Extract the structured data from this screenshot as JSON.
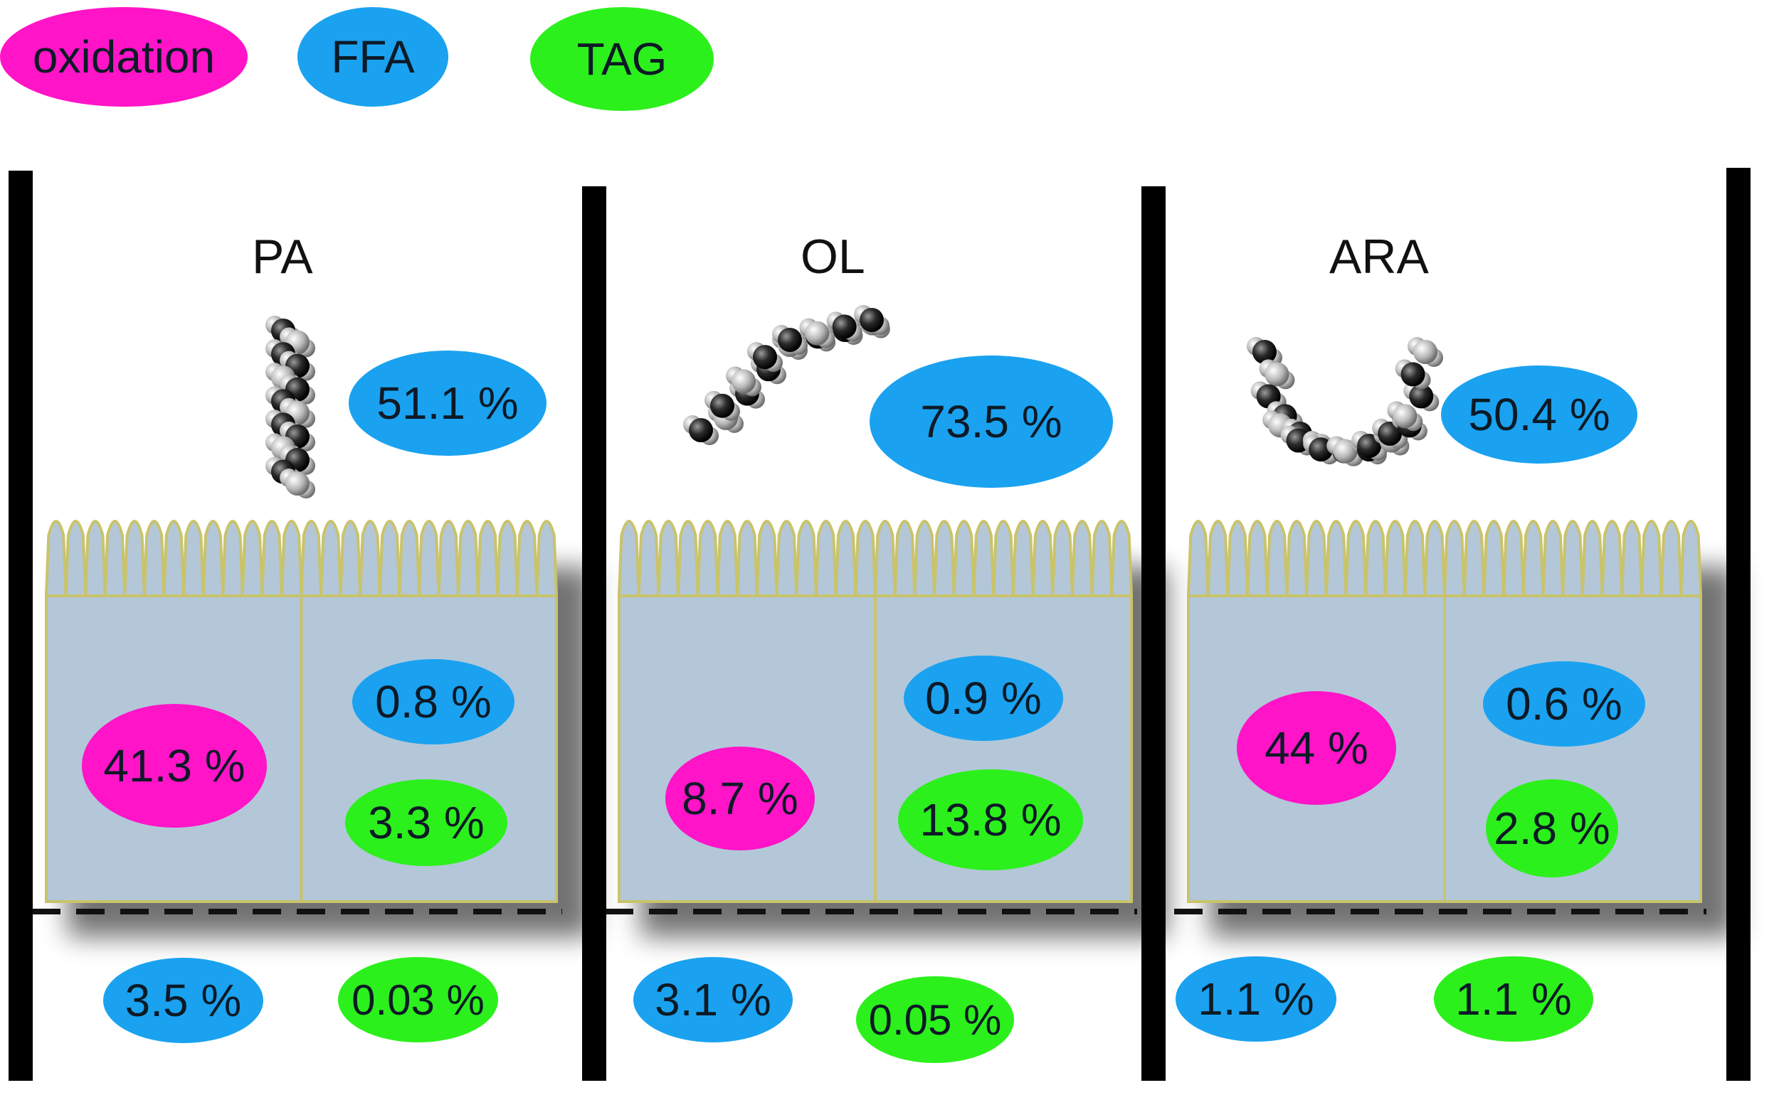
{
  "colors": {
    "oxidation": "#ff14c8",
    "ffa": "#1aa2f0",
    "tag": "#2cf01c",
    "cell_fill": "#b3c7d9",
    "cell_border": "#c9c36b"
  },
  "legend": {
    "oxidation": "oxidation",
    "ffa": "FFA",
    "tag": "TAG"
  },
  "panels": [
    {
      "title": "PA",
      "apical_ffa": "51.1 %",
      "cell_oxidation": "41.3 %",
      "cell_ffa": "0.8 %",
      "cell_tag": "3.3 %",
      "basal_ffa": "3.5 %",
      "basal_tag": "0.03 %"
    },
    {
      "title": "OL",
      "apical_ffa": "73.5 %",
      "cell_oxidation": "8.7 %",
      "cell_ffa": "0.9 %",
      "cell_tag": "13.8 %",
      "basal_ffa": "3.1 %",
      "basal_tag": "0.05 %"
    },
    {
      "title": "ARA",
      "apical_ffa": "50.4 %",
      "cell_oxidation": "44 %",
      "cell_ffa": "0.6 %",
      "cell_tag": "2.8 %",
      "basal_ffa": "1.1 %",
      "basal_tag": "1.1 %"
    }
  ]
}
